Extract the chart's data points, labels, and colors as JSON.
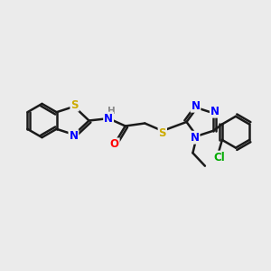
{
  "background_color": "#ebebeb",
  "bond_color": "#1a1a1a",
  "bond_width": 1.8,
  "atom_colors": {
    "S": "#ccaa00",
    "N": "#0000ff",
    "O": "#ff0000",
    "Cl": "#00aa00",
    "H": "#888888"
  },
  "xlim": [
    0,
    10
  ],
  "ylim": [
    0,
    10
  ],
  "figsize": [
    3.0,
    3.0
  ],
  "dpi": 100
}
